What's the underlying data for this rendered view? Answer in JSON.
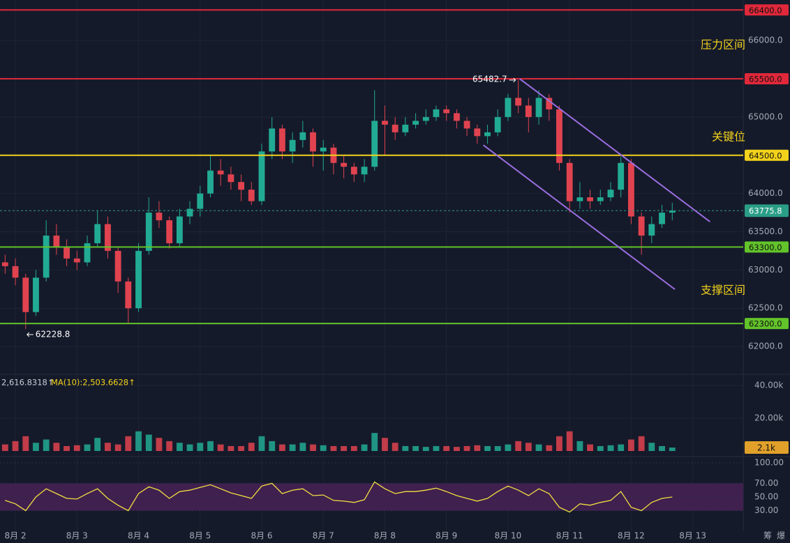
{
  "chart_data": [
    {
      "type": "candlestick",
      "up_color": "#22ab94",
      "down_color": "#e0434f",
      "xlim": [
        1.75,
        13.82
      ],
      "xticks": [
        {
          "value": 2,
          "label": "8月 2"
        },
        {
          "value": 3,
          "label": "8月 3"
        },
        {
          "value": 4,
          "label": "8月 4"
        },
        {
          "value": 5,
          "label": "8月 5"
        },
        {
          "value": 6,
          "label": "8月 6"
        },
        {
          "value": 7,
          "label": "8月 7"
        },
        {
          "value": 8,
          "label": "8月 8"
        },
        {
          "value": 9,
          "label": "8月 9"
        },
        {
          "value": 10,
          "label": "8月 10"
        },
        {
          "value": 11,
          "label": "8月 11"
        },
        {
          "value": 12,
          "label": "8月 12"
        },
        {
          "value": 13,
          "label": "8月 13"
        }
      ],
      "ylim": [
        61700,
        66530
      ],
      "yticks": [
        {
          "value": 62000,
          "label": "62000.0"
        },
        {
          "value": 62500,
          "label": "62500.0"
        },
        {
          "value": 63000,
          "label": "63000.0"
        },
        {
          "value": 63500,
          "label": "63500.0"
        },
        {
          "value": 64000,
          "label": "64000.0"
        },
        {
          "value": 64500,
          "label": "64500.0"
        },
        {
          "value": 65000,
          "label": "65000.0"
        },
        {
          "value": 65500,
          "label": "65500.0"
        },
        {
          "value": 66000,
          "label": "66000.0"
        }
      ],
      "grid": true,
      "x": [
        1.833,
        2,
        2.167,
        2.333,
        2.5,
        2.667,
        2.833,
        3,
        3.167,
        3.333,
        3.5,
        3.667,
        3.833,
        4,
        4.167,
        4.333,
        4.5,
        4.667,
        4.833,
        5,
        5.167,
        5.333,
        5.5,
        5.667,
        5.833,
        6,
        6.167,
        6.333,
        6.5,
        6.667,
        6.833,
        7,
        7.167,
        7.333,
        7.5,
        7.667,
        7.833,
        8,
        8.167,
        8.333,
        8.5,
        8.667,
        8.833,
        9,
        9.167,
        9.333,
        9.5,
        9.667,
        9.833,
        10,
        10.167,
        10.333,
        10.5,
        10.667,
        10.833,
        11,
        11.167,
        11.333,
        11.5,
        11.667,
        11.833,
        12,
        12.167,
        12.333,
        12.5,
        12.667
      ],
      "open": [
        63100,
        63050,
        62900,
        62450,
        62900,
        63450,
        63300,
        63150,
        63100,
        63350,
        63600,
        63250,
        62850,
        62500,
        63250,
        63750,
        63650,
        63350,
        63700,
        63800,
        64000,
        64300,
        64250,
        64150,
        64050,
        63900,
        64550,
        64850,
        64550,
        64700,
        64800,
        64550,
        64600,
        64400,
        64350,
        64250,
        64350,
        64950,
        64900,
        64800,
        64900,
        64950,
        65000,
        65100,
        65050,
        64950,
        64850,
        64750,
        64800,
        65000,
        65250,
        65150,
        65000,
        65250,
        65100,
        64400,
        63900,
        63950,
        63900,
        63950,
        64050,
        64400,
        63700,
        63450,
        63600,
        63750
      ],
      "high": [
        63200,
        63150,
        62950,
        63000,
        63650,
        63600,
        63400,
        63250,
        63450,
        63780,
        63700,
        63300,
        62900,
        63350,
        63950,
        63900,
        63700,
        63800,
        63900,
        64100,
        64500,
        64450,
        64350,
        64250,
        64150,
        64650,
        65000,
        64900,
        64800,
        64950,
        64850,
        64700,
        64650,
        64500,
        64400,
        64450,
        65350,
        65150,
        65000,
        65000,
        65050,
        65100,
        65150,
        65150,
        65100,
        65000,
        64900,
        64900,
        65100,
        65300,
        65482.7,
        65250,
        65350,
        65300,
        65150,
        64450,
        64150,
        64050,
        64050,
        64150,
        64480,
        64450,
        63750,
        63700,
        63850,
        63880
      ],
      "low": [
        62950,
        62800,
        62228.8,
        62400,
        62850,
        63200,
        63050,
        63000,
        63050,
        63300,
        63150,
        62700,
        62300,
        62450,
        63200,
        63550,
        63280,
        63300,
        63600,
        63700,
        63950,
        64100,
        64050,
        63900,
        63850,
        63850,
        64450,
        64450,
        64400,
        64600,
        64350,
        64300,
        64250,
        64200,
        64150,
        64150,
        64300,
        64500,
        64700,
        64750,
        64850,
        64900,
        64950,
        64950,
        64850,
        64750,
        64650,
        64650,
        64750,
        64950,
        65050,
        64800,
        64900,
        64950,
        64300,
        63750,
        63800,
        63800,
        63850,
        63900,
        63950,
        63600,
        63200,
        63350,
        63550,
        63650
      ],
      "close": [
        63050,
        62900,
        62450,
        62900,
        63450,
        63300,
        63150,
        63100,
        63350,
        63600,
        63250,
        62850,
        62500,
        63250,
        63750,
        63650,
        63350,
        63700,
        63800,
        64000,
        64300,
        64250,
        64150,
        64050,
        63900,
        64550,
        64850,
        64550,
        64700,
        64800,
        64550,
        64600,
        64400,
        64350,
        64250,
        64350,
        64950,
        64900,
        64800,
        64900,
        64950,
        65000,
        65100,
        65050,
        64950,
        64850,
        64750,
        64800,
        65000,
        65250,
        65150,
        65000,
        65250,
        65100,
        64400,
        63900,
        63950,
        63900,
        63950,
        64050,
        64400,
        63700,
        63450,
        63600,
        63750,
        63775.8
      ],
      "levels": [
        {
          "value": 66400,
          "label": "66400.0",
          "color": "#e0283a"
        },
        {
          "value": 65500,
          "label": "65500.0",
          "color": "#e0283a"
        },
        {
          "value": 64500,
          "label": "64500.0",
          "color": "#f2d21b"
        },
        {
          "value": 63300,
          "label": "63300.0",
          "color": "#62c32a"
        },
        {
          "value": 62300,
          "label": "62300.0",
          "color": "#62c32a"
        }
      ],
      "last_price": {
        "value": 63775.8,
        "label": "63775.8",
        "color": "#2a9d86"
      },
      "annotations": [
        {
          "text": "65482.7",
          "x": 10.167,
          "value": 65482.7
        },
        {
          "text": "62228.8",
          "x": 2.167,
          "value": 62228.8
        }
      ],
      "zone_labels": [
        "压力区间",
        "关键位",
        "支撑区间"
      ],
      "trend_lines": [
        {
          "x": [
            10.19,
            13.28
          ],
          "y": [
            65500,
            63631
          ],
          "color": "#9a6ee0"
        },
        {
          "x": [
            9.6,
            12.71
          ],
          "y": [
            64633,
            62747
          ],
          "color": "#9a6ee0"
        }
      ]
    },
    {
      "type": "bar",
      "ylim": [
        0,
        45500
      ],
      "yticks": [
        {
          "value": 20000,
          "label": "20.00k"
        },
        {
          "value": 40000,
          "label": "40.00k"
        }
      ],
      "values": [
        4000,
        6000,
        9000,
        5000,
        7000,
        5000,
        3000,
        3500,
        4000,
        8000,
        5000,
        4000,
        9000,
        12000,
        10000,
        8000,
        6000,
        5000,
        4000,
        5000,
        6000,
        4000,
        3000,
        3000,
        5000,
        9000,
        6000,
        4000,
        4000,
        5000,
        4000,
        3500,
        3000,
        3000,
        3000,
        4000,
        11000,
        8000,
        5000,
        3000,
        3000,
        2500,
        3000,
        3000,
        2500,
        3000,
        3500,
        3000,
        3000,
        4000,
        6000,
        5000,
        4000,
        3500,
        9000,
        12000,
        6000,
        4000,
        3000,
        3500,
        4000,
        7000,
        9000,
        5000,
        3000,
        2100
      ],
      "ma_labels": [
        "2,616.8318↑",
        "MA(10):2,503.6628↑"
      ],
      "volume_tag": {
        "value": 2100,
        "label": "2.1k",
        "color": "#e0a02a"
      }
    },
    {
      "type": "line",
      "ylim": [
        0,
        100
      ],
      "color": "#f0e040",
      "band": [
        30,
        70
      ],
      "band_color": "#40204f",
      "yticks": [
        {
          "value": 30,
          "label": "30.00"
        },
        {
          "value": 50,
          "label": "50.00"
        },
        {
          "value": 70,
          "label": "70.00"
        },
        {
          "value": 100,
          "label": "100.00"
        }
      ],
      "values": [
        45,
        40,
        30,
        50,
        62,
        55,
        48,
        47,
        55,
        62,
        48,
        38,
        30,
        55,
        65,
        60,
        48,
        58,
        60,
        64,
        68,
        62,
        56,
        52,
        48,
        66,
        70,
        55,
        60,
        62,
        52,
        53,
        45,
        44,
        42,
        46,
        72,
        62,
        55,
        58,
        58,
        60,
        63,
        58,
        52,
        48,
        44,
        48,
        58,
        66,
        60,
        52,
        62,
        55,
        35,
        28,
        40,
        38,
        42,
        45,
        58,
        35,
        30,
        42,
        48,
        50
      ]
    }
  ],
  "toolbar": [
    "筹",
    "爆"
  ]
}
